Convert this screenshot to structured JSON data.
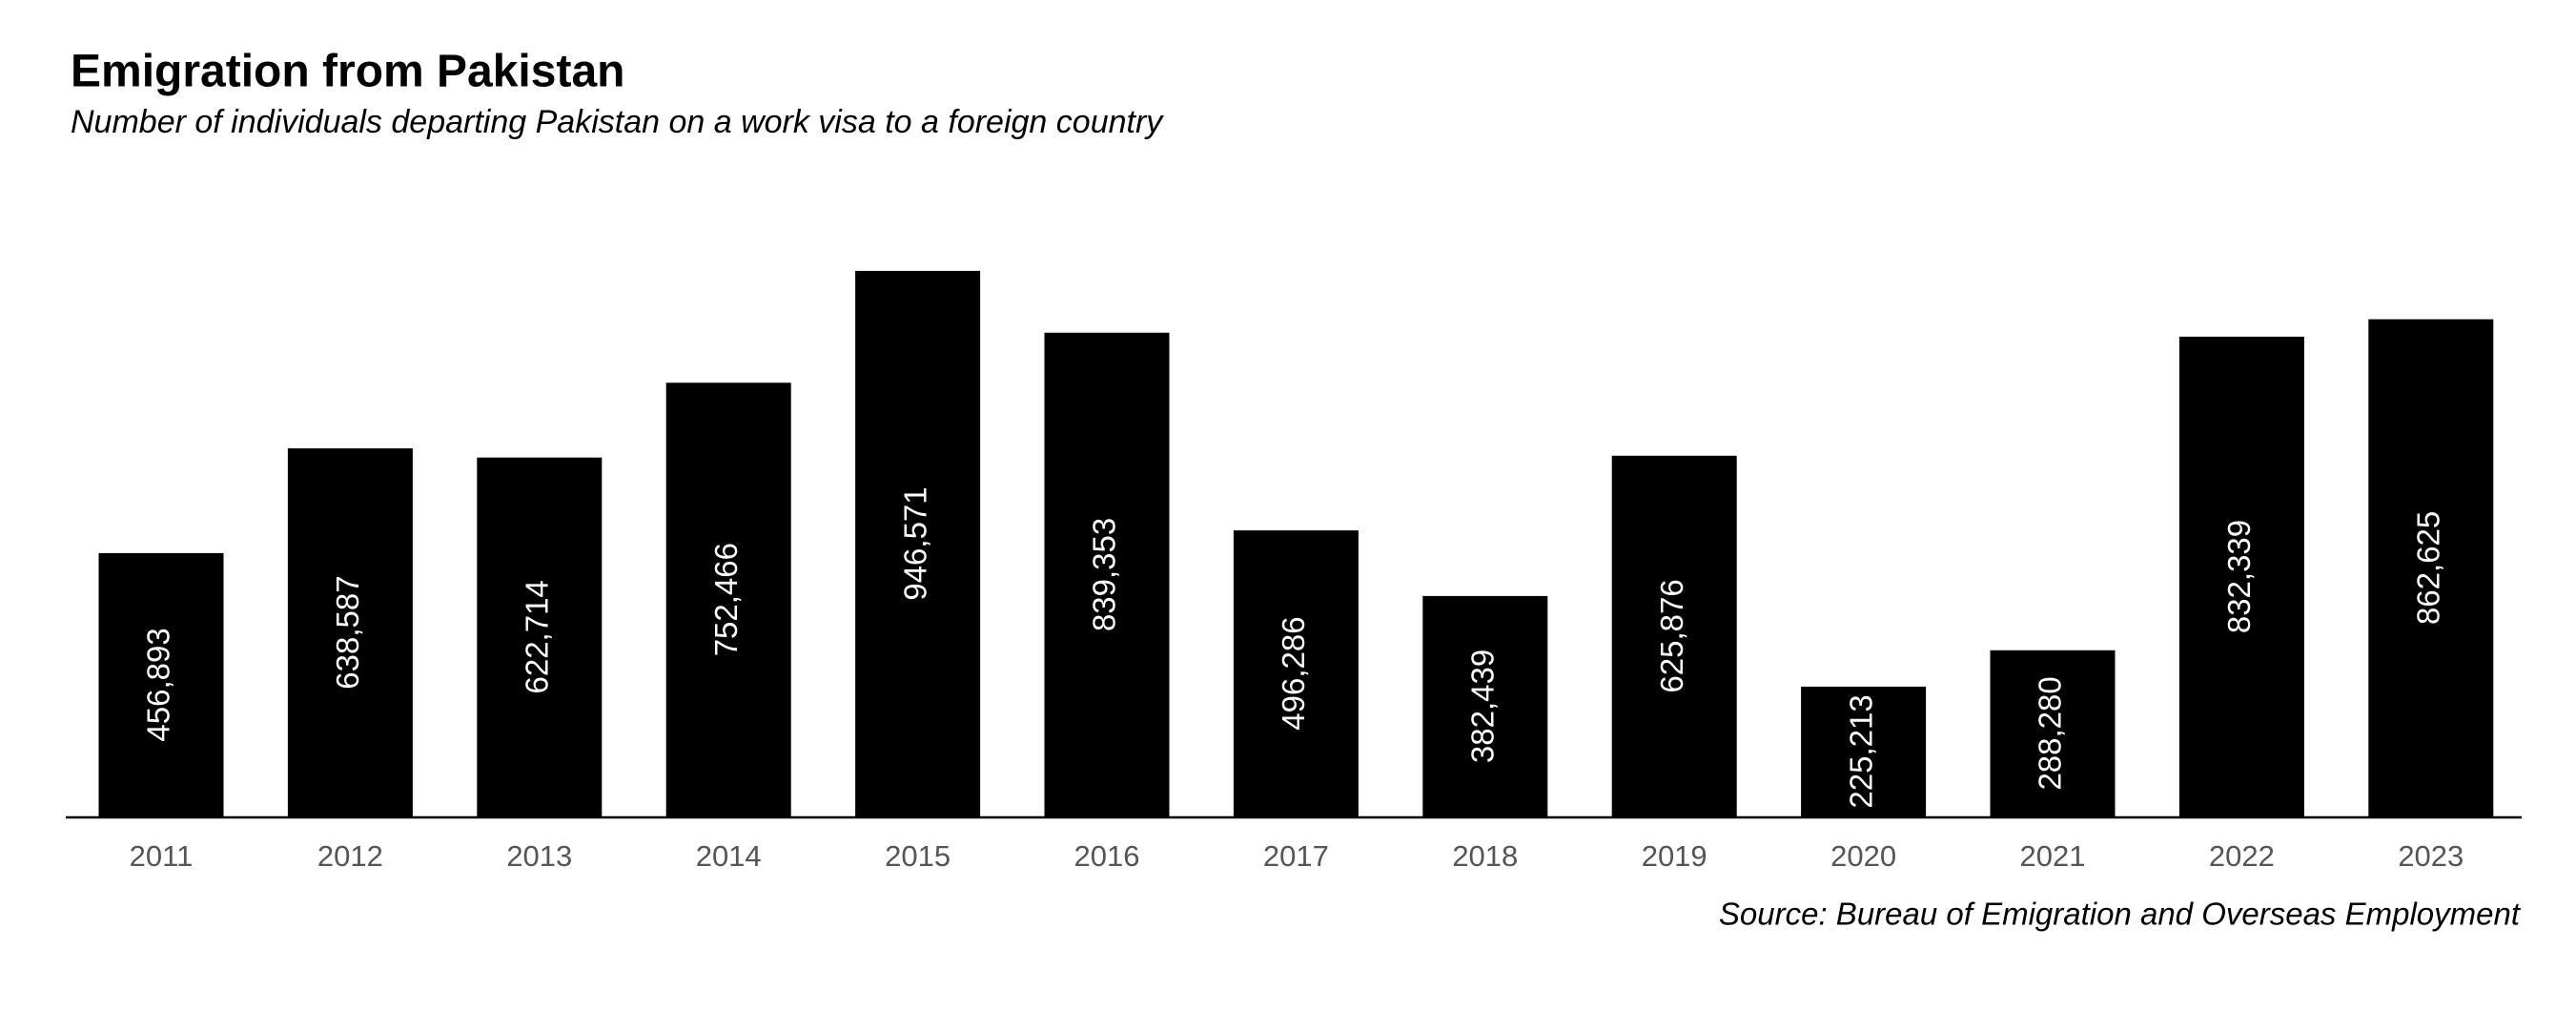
{
  "chart_data": {
    "type": "bar",
    "title": "Emigration from Pakistan",
    "subtitle": "Number of individuals departing Pakistan on a work visa to a foreign country",
    "source": "Source: Bureau of Emigration and Overseas Employment",
    "categories": [
      "2011",
      "2012",
      "2013",
      "2014",
      "2015",
      "2016",
      "2017",
      "2018",
      "2019",
      "2020",
      "2021",
      "2022",
      "2023"
    ],
    "values": [
      456893,
      638587,
      622714,
      752466,
      946571,
      839353,
      496286,
      382439,
      625876,
      225213,
      288280,
      832339,
      862625
    ],
    "value_labels": [
      "456,893",
      "638,587",
      "622,714",
      "752,466",
      "946,571",
      "839,353",
      "496,286",
      "382,439",
      "625,876",
      "225,213",
      "288,280",
      "832,339",
      "862,625"
    ],
    "color": "#000000"
  }
}
